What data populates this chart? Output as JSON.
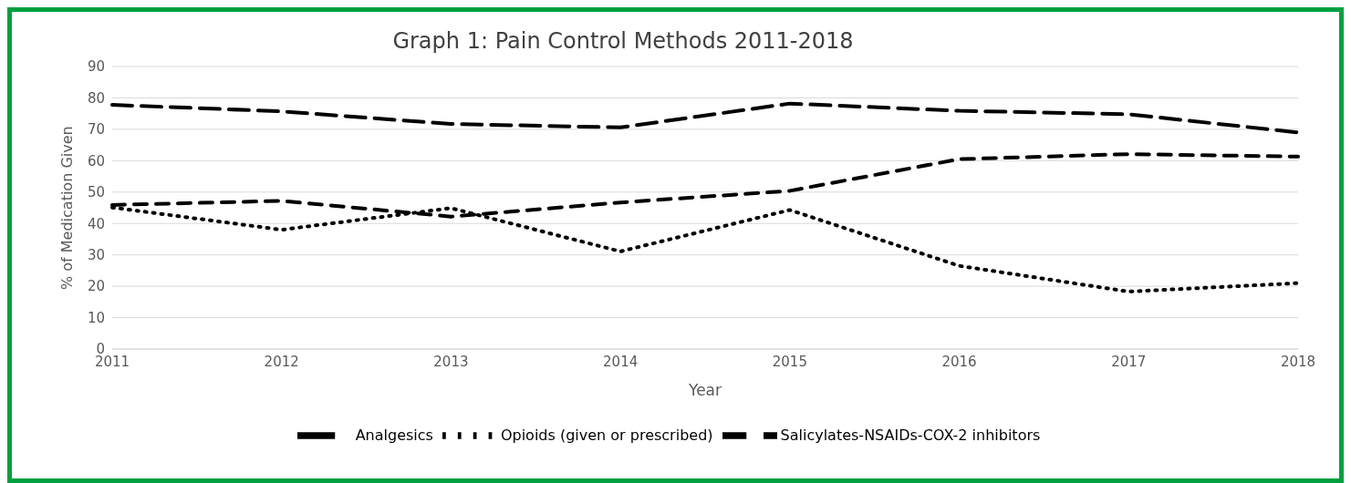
{
  "chart_data": {
    "type": "line",
    "title": "Graph 1: Pain Control Methods 2011-2018",
    "xlabel": "Year",
    "ylabel": "% of Medication Given",
    "categories": [
      "2011",
      "2012",
      "2013",
      "2014",
      "2015",
      "2016",
      "2017",
      "2018"
    ],
    "series": [
      {
        "name": "Analgesics",
        "color": "#000000",
        "line_style": "dashed",
        "values": [
          77.8,
          75.7,
          71.7,
          70.6,
          78.2,
          75.9,
          74.8,
          69.0
        ]
      },
      {
        "name": "Salicylates-NSAIDs-COX-2 inhibitors",
        "color": "#000000",
        "line_style": "dashed",
        "values": [
          45.9,
          47.2,
          42.2,
          46.7,
          50.4,
          60.5,
          62.1,
          61.3
        ]
      },
      {
        "name": "Opioids (given or prescribed)",
        "color": "#000000",
        "line_style": "dotted",
        "values": [
          45.1,
          38.0,
          44.9,
          31.1,
          44.3,
          26.5,
          18.3,
          21.0
        ]
      }
    ],
    "ylim": [
      0,
      90
    ],
    "yticks": [
      0,
      10,
      20,
      30,
      40,
      50,
      60,
      70,
      80,
      90
    ],
    "grid": "y",
    "legend": "bottom",
    "marker": "none"
  }
}
